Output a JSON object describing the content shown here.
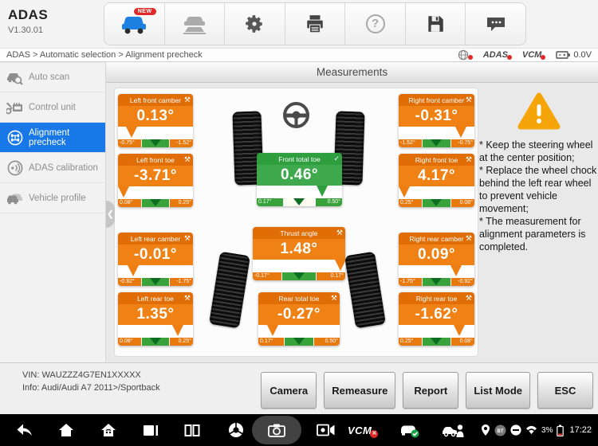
{
  "header": {
    "app_title": "ADAS",
    "version": "V1.30.01",
    "new_badge": "NEW",
    "toolbar_icons": [
      "vehicle-diagnostics",
      "vehicle-lift",
      "settings",
      "print",
      "help",
      "save",
      "chat"
    ]
  },
  "statusbar": {
    "breadcrumb": "ADAS > Automatic selection > Alignment precheck",
    "adas_label": "ADAS",
    "vcm_label": "VCM",
    "voltage": "0.0V"
  },
  "sidebar": {
    "items": [
      {
        "label": "Auto scan",
        "selected": false
      },
      {
        "label": "Control unit",
        "selected": false
      },
      {
        "label": "Alignment precheck",
        "selected": true
      },
      {
        "label": "ADAS calibration",
        "selected": false
      },
      {
        "label": "Vehicle profile",
        "selected": false
      }
    ]
  },
  "main": {
    "title": "Measurements",
    "card_icons": {
      "tools": "⚒",
      "check": "✓"
    },
    "cards": [
      {
        "id": "left-front-camber",
        "title": "Left front camber",
        "value": "0.13°",
        "status": "warn",
        "range_min": "-0.75°",
        "range_max": "-1.52°",
        "marker_pct": 18
      },
      {
        "id": "left-front-toe",
        "title": "Left front toe",
        "value": "-3.71°",
        "status": "warn",
        "range_min": "0.08°",
        "range_max": "0.25°",
        "marker_pct": 7
      },
      {
        "id": "left-rear-camber",
        "title": "Left rear camber",
        "value": "-0.01°",
        "status": "warn",
        "range_min": "-0.92°",
        "range_max": "-1.75°",
        "marker_pct": 20
      },
      {
        "id": "left-rear-toe",
        "title": "Left rear toe",
        "value": "1.35°",
        "status": "warn",
        "range_min": "0.08°",
        "range_max": "0.25°",
        "marker_pct": 80
      },
      {
        "id": "front-total-toe",
        "title": "Front total toe",
        "value": "0.46°",
        "status": "ok",
        "range_min": "0.17°",
        "range_max": "0.50°",
        "marker_pct": 77
      },
      {
        "id": "thrust-angle",
        "title": "Thrust angle",
        "value": "1.48°",
        "status": "warn",
        "range_min": "-0.17°",
        "range_max": "0.17°",
        "marker_pct": 95
      },
      {
        "id": "rear-total-toe",
        "title": "Rear total toe",
        "value": "-0.27°",
        "status": "warn",
        "range_min": "0.17°",
        "range_max": "0.50°",
        "marker_pct": 18
      },
      {
        "id": "right-front-camber",
        "title": "Right front camber",
        "value": "-0.31°",
        "status": "warn",
        "range_min": "-1.52°",
        "range_max": "-0.75°",
        "marker_pct": 82
      },
      {
        "id": "right-front-toe",
        "title": "Right front toe",
        "value": "4.17°",
        "status": "warn",
        "range_min": "0.25°",
        "range_max": "0.08°",
        "marker_pct": 7
      },
      {
        "id": "right-rear-camber",
        "title": "Right rear camber",
        "value": "0.09°",
        "status": "warn",
        "range_min": "-1.75°",
        "range_max": "-0.92°",
        "marker_pct": 76
      },
      {
        "id": "right-rear-toe",
        "title": "Right rear toe",
        "value": "-1.62°",
        "status": "warn",
        "range_min": "0.25°",
        "range_max": "0.08°",
        "marker_pct": 80
      }
    ],
    "notes": [
      "* Keep the steering wheel at the center position;",
      "* Replace the wheel chock behind the left rear wheel to prevent vehicle movement;",
      "* The measurement for alignment parameters is completed."
    ]
  },
  "footer": {
    "vin": "VIN: WAUZZZ4G7EN1XXXXX",
    "info": "Info: Audi/Audi A7 2011>/Sportback",
    "buttons": [
      "Camera",
      "Remeasure",
      "Report",
      "List Mode",
      "ESC"
    ]
  },
  "navbar": {
    "vcm_label": "VCM",
    "battery_pct": "3%",
    "time": "17:22"
  },
  "colors": {
    "warn_orange_header": "#e06d06",
    "warn_orange_body": "#ef8115",
    "ok_green_header": "#2e9e3e",
    "ok_green_body": "#3fa94e",
    "target_zone_green": "#3aa23a",
    "selected_blue": "#1878e8",
    "alert_yellow": "#f5a50a",
    "badge_red": "#e02a2a"
  }
}
